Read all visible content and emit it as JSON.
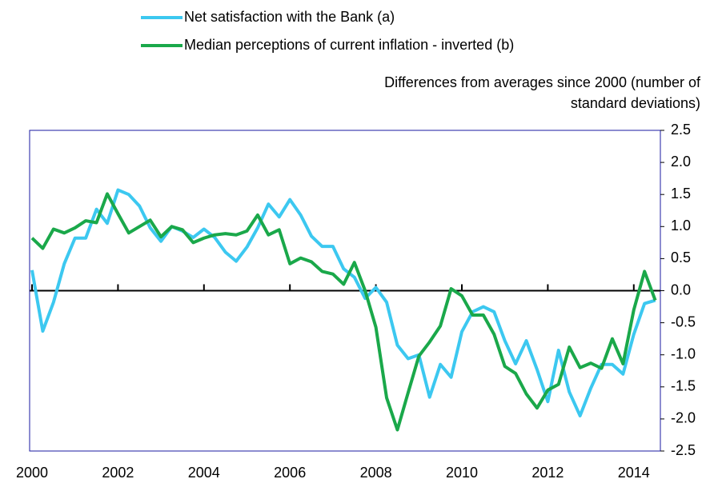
{
  "chart_data": {
    "type": "line",
    "y_label": [
      "Differences from averages since 2000 (number of",
      "standard deviations)"
    ],
    "x": [
      2000,
      2000.25,
      2000.5,
      2000.75,
      2001,
      2001.25,
      2001.5,
      2001.75,
      2002,
      2002.25,
      2002.5,
      2002.75,
      2003,
      2003.25,
      2003.5,
      2003.75,
      2004,
      2004.25,
      2004.5,
      2004.75,
      2005,
      2005.25,
      2005.5,
      2005.75,
      2006,
      2006.25,
      2006.5,
      2006.75,
      2007,
      2007.25,
      2007.5,
      2007.75,
      2008,
      2008.25,
      2008.5,
      2008.75,
      2009,
      2009.25,
      2009.5,
      2009.75,
      2010,
      2010.25,
      2010.5,
      2010.75,
      2011,
      2011.25,
      2011.5,
      2011.75,
      2012,
      2012.25,
      2012.5,
      2012.75,
      2013,
      2013.25,
      2013.5,
      2013.75,
      2014,
      2014.25,
      2014.5
    ],
    "series": [
      {
        "name": "Net satisfaction with the Bank (a)",
        "color": "#3cc8f0",
        "values": [
          0.32,
          -0.63,
          -0.18,
          0.42,
          0.82,
          0.82,
          1.27,
          1.05,
          1.57,
          1.5,
          1.32,
          0.98,
          0.77,
          1.0,
          0.93,
          0.83,
          0.96,
          0.83,
          0.6,
          0.46,
          0.68,
          0.98,
          1.35,
          1.15,
          1.42,
          1.18,
          0.85,
          0.69,
          0.69,
          0.34,
          0.21,
          -0.12,
          0.05,
          -0.18,
          -0.85,
          -1.06,
          -1.0,
          -1.66,
          -1.15,
          -1.35,
          -0.64,
          -0.33,
          -0.25,
          -0.33,
          -0.78,
          -1.14,
          -0.78,
          -1.23,
          -1.73,
          -0.93,
          -1.58,
          -1.95,
          -1.52,
          -1.15,
          -1.15,
          -1.3,
          -0.68,
          -0.2,
          -0.15
        ]
      },
      {
        "name": "Median perceptions of current inflation - inverted (b)",
        "color": "#1aa84a",
        "values": [
          0.82,
          0.66,
          0.96,
          0.9,
          0.98,
          1.09,
          1.06,
          1.51,
          1.2,
          0.9,
          1.0,
          1.1,
          0.84,
          1.0,
          0.95,
          0.75,
          0.82,
          0.87,
          0.89,
          0.87,
          0.93,
          1.18,
          0.87,
          0.95,
          0.42,
          0.51,
          0.45,
          0.3,
          0.26,
          0.1,
          0.44,
          0.0,
          -0.57,
          -1.67,
          -2.17,
          -1.59,
          -1.02,
          -0.8,
          -0.55,
          0.03,
          -0.08,
          -0.38,
          -0.38,
          -0.68,
          -1.18,
          -1.29,
          -1.61,
          -1.83,
          -1.55,
          -1.46,
          -0.88,
          -1.2,
          -1.13,
          -1.21,
          -0.75,
          -1.14,
          -0.3,
          0.3,
          -0.15
        ]
      }
    ],
    "xlim": [
      2000,
      2014.6
    ],
    "xticks": [
      2000,
      2002,
      2004,
      2006,
      2008,
      2010,
      2012,
      2014
    ],
    "ylim": [
      -2.5,
      2.5
    ],
    "yticks": [
      {
        "value": 2.5,
        "label": "2.5"
      },
      {
        "value": 2.0,
        "label": "2.0"
      },
      {
        "value": 1.5,
        "label": "1.5"
      },
      {
        "value": 1.0,
        "label": "1.0"
      },
      {
        "value": 0.5,
        "label": "0.5"
      },
      {
        "value": 0.0,
        "label": "0.0"
      },
      {
        "value": -0.5,
        "label": "-0.5"
      },
      {
        "value": -1.0,
        "label": "-1.0"
      },
      {
        "value": -1.5,
        "label": "-1.5"
      },
      {
        "value": -2.0,
        "label": "-2.0"
      },
      {
        "value": -2.5,
        "label": "-2.5"
      }
    ]
  }
}
